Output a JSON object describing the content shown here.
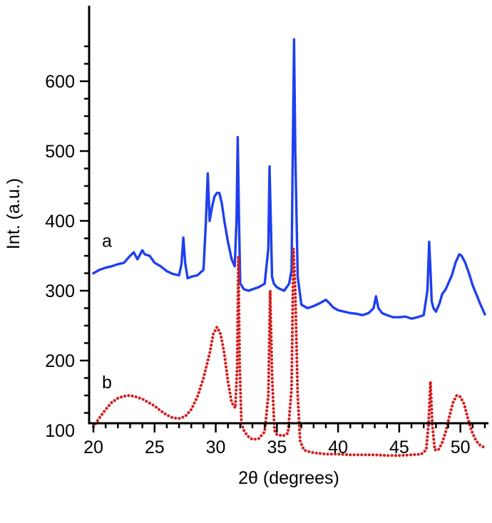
{
  "chart_data": {
    "type": "line",
    "xlabel": "2θ (degrees)",
    "ylabel": "Int. (a.u.)",
    "xlim": [
      20,
      52
    ],
    "ylim": [
      50,
      660
    ],
    "x_ticks": [
      20,
      25,
      30,
      35,
      40,
      45,
      50
    ],
    "y_ticks": [
      100,
      200,
      300,
      400,
      500,
      600
    ],
    "grid": false,
    "annotations": [
      {
        "text": "a",
        "x": 20.7,
        "y": 363,
        "series": "a"
      },
      {
        "text": "b",
        "x": 20.7,
        "y": 160,
        "series": "b"
      }
    ],
    "series": [
      {
        "name": "a",
        "style": "solid",
        "color": "#1e3ff0",
        "x": [
          20.0,
          20.5,
          21.0,
          21.5,
          22.0,
          22.5,
          23.0,
          23.3,
          23.6,
          24.0,
          24.2,
          24.6,
          25.0,
          25.5,
          26.0,
          26.5,
          27.0,
          27.2,
          27.35,
          27.5,
          27.7,
          28.0,
          28.5,
          29.0,
          29.2,
          29.35,
          29.5,
          29.7,
          29.9,
          30.1,
          30.3,
          30.5,
          30.7,
          31.0,
          31.3,
          31.55,
          31.7,
          31.8,
          31.9,
          32.0,
          32.1,
          32.3,
          32.7,
          33.0,
          33.5,
          34.0,
          34.3,
          34.4,
          34.5,
          34.6,
          34.75,
          35.0,
          35.3,
          35.6,
          36.0,
          36.2,
          36.3,
          36.4,
          36.5,
          36.7,
          37.0,
          37.5,
          38.0,
          38.5,
          39.0,
          39.3,
          39.6,
          40.0,
          40.5,
          41.0,
          41.5,
          42.0,
          42.5,
          42.9,
          43.1,
          43.3,
          43.6,
          44.0,
          44.5,
          45.0,
          45.5,
          46.0,
          46.5,
          47.0,
          47.3,
          47.45,
          47.55,
          47.65,
          47.8,
          48.0,
          48.3,
          48.5,
          48.8,
          49.0,
          49.3,
          49.6,
          49.9,
          50.1,
          50.4,
          50.7,
          51.0,
          51.3,
          51.6,
          52.0
        ],
        "y": [
          325,
          330,
          333,
          335,
          338,
          340,
          350,
          355,
          345,
          358,
          352,
          350,
          340,
          335,
          328,
          324,
          322,
          338,
          376,
          340,
          318,
          320,
          322,
          330,
          400,
          468,
          400,
          420,
          435,
          440,
          440,
          425,
          400,
          370,
          345,
          335,
          400,
          520,
          400,
          310,
          308,
          302,
          300,
          302,
          305,
          310,
          360,
          478,
          400,
          320,
          310,
          305,
          302,
          300,
          310,
          330,
          500,
          660,
          500,
          320,
          280,
          275,
          278,
          282,
          287,
          282,
          276,
          272,
          270,
          268,
          267,
          265,
          268,
          275,
          292,
          275,
          268,
          265,
          262,
          262,
          263,
          260,
          262,
          265,
          300,
          370,
          330,
          285,
          275,
          270,
          282,
          295,
          302,
          310,
          322,
          340,
          352,
          350,
          340,
          325,
          308,
          295,
          282,
          266
        ]
      },
      {
        "name": "b",
        "style": "dotted",
        "color": "#d42020",
        "x": [
          20.0,
          20.5,
          21.0,
          21.5,
          22.0,
          22.5,
          23.0,
          23.5,
          24.0,
          24.5,
          25.0,
          25.5,
          26.0,
          26.5,
          27.0,
          27.5,
          28.0,
          28.5,
          29.0,
          29.5,
          29.8,
          30.1,
          30.4,
          30.7,
          31.0,
          31.3,
          31.6,
          31.75,
          31.85,
          31.95,
          32.1,
          32.3,
          32.6,
          33.0,
          33.5,
          34.0,
          34.3,
          34.45,
          34.6,
          34.8,
          35.0,
          35.5,
          35.9,
          36.2,
          36.35,
          36.5,
          36.7,
          36.9,
          37.2,
          37.5,
          38.0,
          39.0,
          40.0,
          41.0,
          42.0,
          43.0,
          44.0,
          45.0,
          46.0,
          46.8,
          47.2,
          47.4,
          47.55,
          47.7,
          47.9,
          48.2,
          48.5,
          48.8,
          49.1,
          49.4,
          49.7,
          50.0,
          50.3,
          50.6,
          50.9,
          51.2,
          51.5,
          52.0
        ],
        "y": [
          105,
          118,
          130,
          140,
          146,
          149,
          150,
          148,
          145,
          140,
          135,
          128,
          122,
          118,
          117,
          120,
          130,
          148,
          175,
          210,
          238,
          248,
          238,
          210,
          170,
          140,
          132,
          190,
          350,
          200,
          110,
          100,
          92,
          87,
          88,
          98,
          150,
          300,
          180,
          100,
          94,
          92,
          96,
          160,
          360,
          300,
          150,
          85,
          72,
          70,
          68,
          66,
          66,
          65,
          65,
          65,
          64,
          64,
          65,
          66,
          72,
          110,
          170,
          110,
          72,
          72,
          82,
          98,
          120,
          140,
          150,
          148,
          138,
          118,
          100,
          88,
          80,
          75
        ]
      }
    ]
  }
}
